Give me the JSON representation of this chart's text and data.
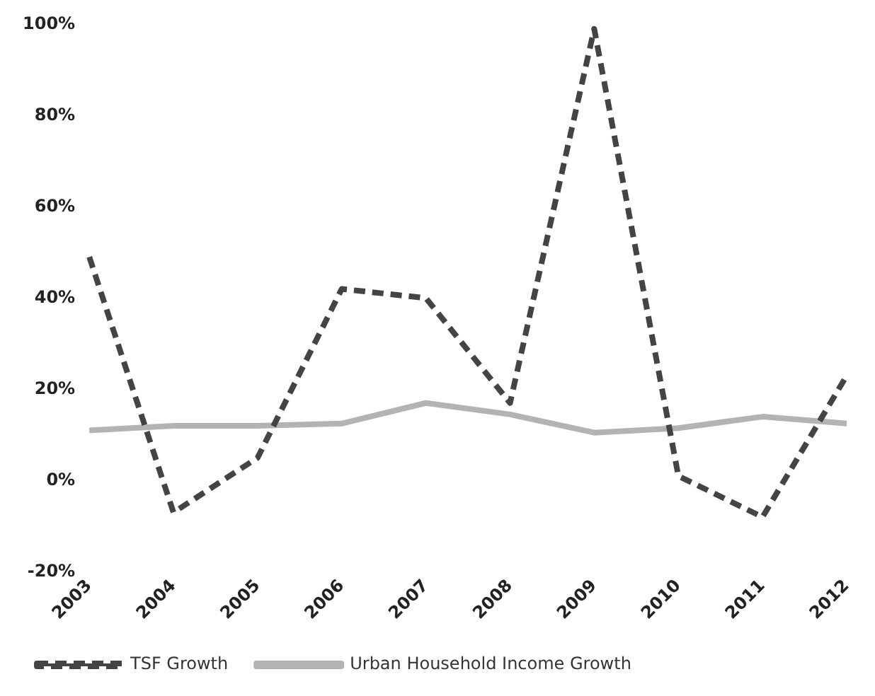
{
  "chart_data": {
    "type": "line",
    "categories": [
      "2003",
      "2004",
      "2005",
      "2006",
      "2007",
      "2008",
      "2009",
      "2010",
      "2011",
      "2012"
    ],
    "series": [
      {
        "name": "TSF Growth",
        "color": "#444444",
        "line_style": "dashed",
        "values": [
          49,
          -7,
          5,
          42,
          40,
          17,
          99,
          1,
          -8,
          23
        ]
      },
      {
        "name": "Urban Household Income Growth",
        "color": "#b3b3b3",
        "line_style": "solid",
        "values": [
          11,
          12,
          12,
          12.5,
          17,
          14.5,
          10.5,
          11.5,
          14,
          12.5
        ]
      }
    ],
    "ylim": [
      -20,
      100
    ],
    "yticks": [
      {
        "value": -20,
        "label": "-20%"
      },
      {
        "value": 0,
        "label": "0%"
      },
      {
        "value": 20,
        "label": "20%"
      },
      {
        "value": 40,
        "label": "40%"
      },
      {
        "value": 60,
        "label": "60%"
      },
      {
        "value": 80,
        "label": "80%"
      },
      {
        "value": 100,
        "label": "100%"
      }
    ],
    "grid": false,
    "legend": "bottom left",
    "marker": "none"
  }
}
